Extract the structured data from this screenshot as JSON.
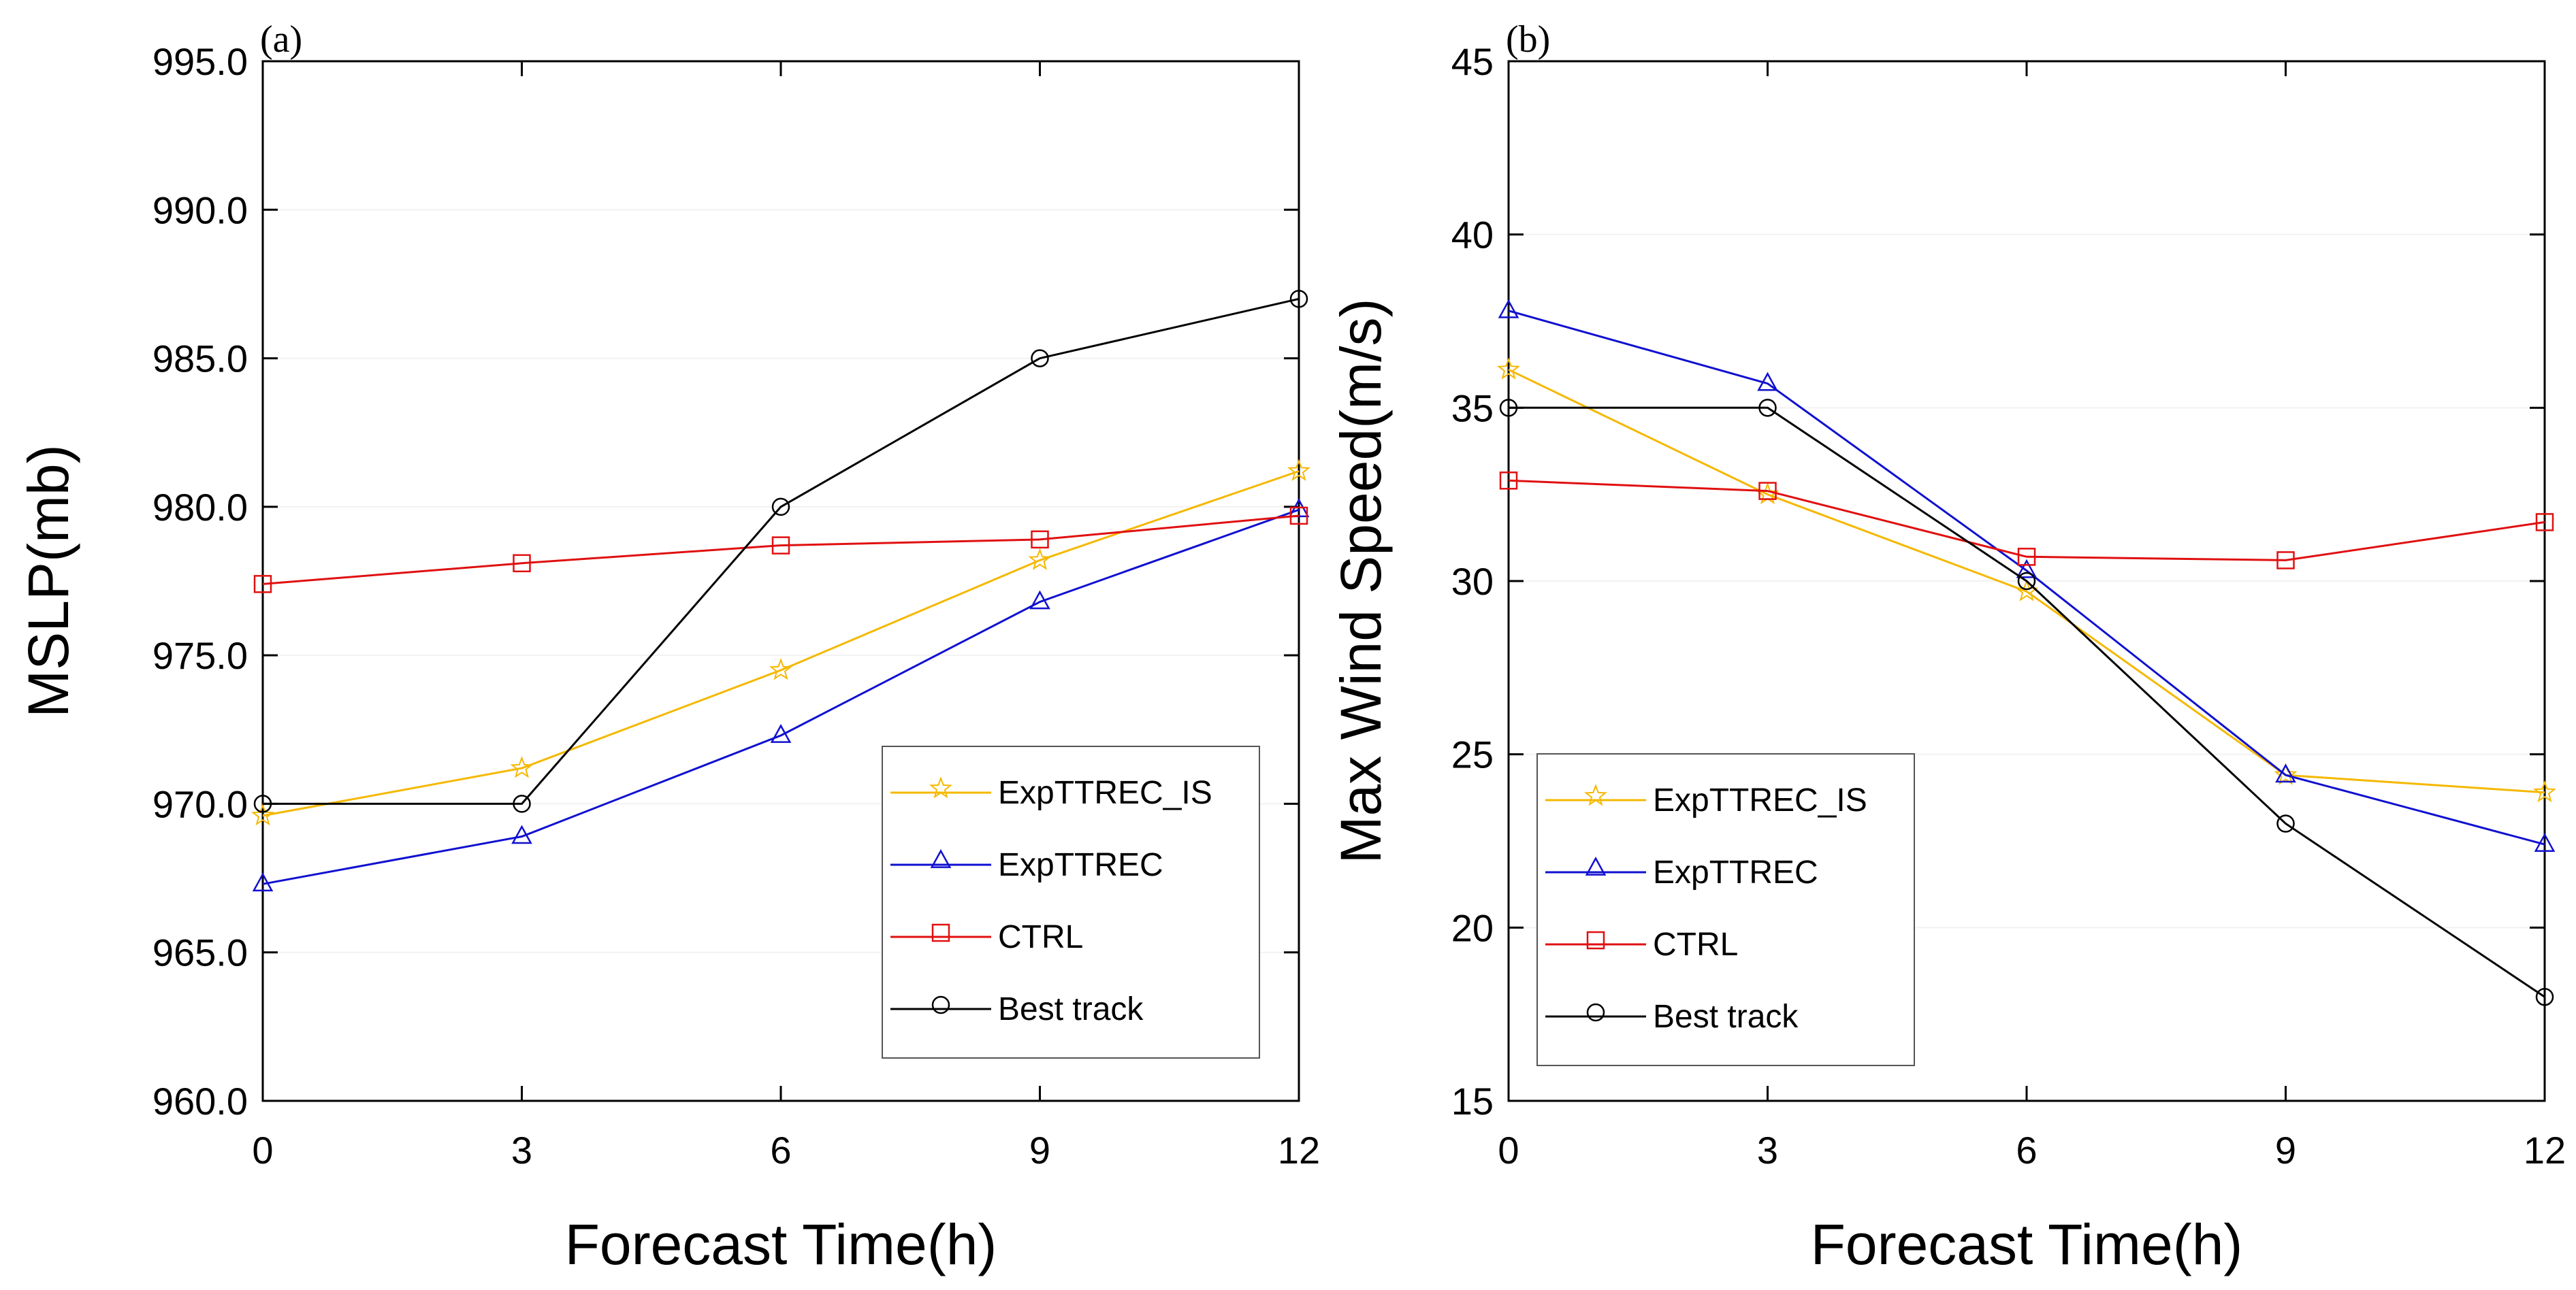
{
  "chart_data": [
    {
      "type": "line",
      "panel_label": "(a)",
      "xlabel": "Forecast Time(h)",
      "ylabel": "MSLP(mb)",
      "x": [
        0,
        3,
        6,
        9,
        12
      ],
      "xticks": [
        "0",
        "3",
        "6",
        "9",
        "12"
      ],
      "xlim": [
        0,
        12
      ],
      "ylim": [
        960,
        995
      ],
      "yticks": [
        "960.0",
        "965.0",
        "970.0",
        "975.0",
        "980.0",
        "985.0",
        "990.0",
        "995.0"
      ],
      "ytick_values": [
        960,
        965,
        970,
        975,
        980,
        985,
        990,
        995
      ],
      "legend_position": "bottom-right",
      "series": [
        {
          "name": "ExpTTREC_IS",
          "color": "#f5b800",
          "marker": "star",
          "values": [
            969.6,
            971.2,
            974.5,
            978.2,
            981.2
          ]
        },
        {
          "name": "ExpTTREC",
          "color": "#1010d0",
          "marker": "triangle",
          "values": [
            967.3,
            968.9,
            972.3,
            976.8,
            979.9
          ]
        },
        {
          "name": "CTRL",
          "color": "#e01010",
          "marker": "square",
          "values": [
            977.4,
            978.1,
            978.7,
            978.9,
            979.7
          ]
        },
        {
          "name": "Best track",
          "color": "#000000",
          "marker": "circle",
          "values": [
            970,
            970,
            980,
            985,
            987
          ]
        }
      ]
    },
    {
      "type": "line",
      "panel_label": "(b)",
      "xlabel": "Forecast Time(h)",
      "ylabel": "Max Wind Speed(m/s)",
      "x": [
        0,
        3,
        6,
        9,
        12
      ],
      "xticks": [
        "0",
        "3",
        "6",
        "9",
        "12"
      ],
      "xlim": [
        0,
        12
      ],
      "ylim": [
        15,
        45
      ],
      "yticks": [
        "15",
        "20",
        "25",
        "30",
        "35",
        "40",
        "45"
      ],
      "ytick_values": [
        15,
        20,
        25,
        30,
        35,
        40,
        45
      ],
      "legend_position": "bottom-left",
      "series": [
        {
          "name": "ExpTTREC_IS",
          "color": "#f5b800",
          "marker": "star",
          "values": [
            36.1,
            32.5,
            29.7,
            24.4,
            23.9
          ]
        },
        {
          "name": "ExpTTREC",
          "color": "#1010d0",
          "marker": "triangle",
          "values": [
            37.8,
            35.7,
            30.3,
            24.4,
            22.4
          ]
        },
        {
          "name": "CTRL",
          "color": "#e01010",
          "marker": "square",
          "values": [
            32.9,
            32.6,
            30.7,
            30.6,
            31.7
          ]
        },
        {
          "name": "Best track",
          "color": "#000000",
          "marker": "circle",
          "values": [
            35,
            35,
            30,
            23,
            18
          ]
        }
      ]
    }
  ]
}
